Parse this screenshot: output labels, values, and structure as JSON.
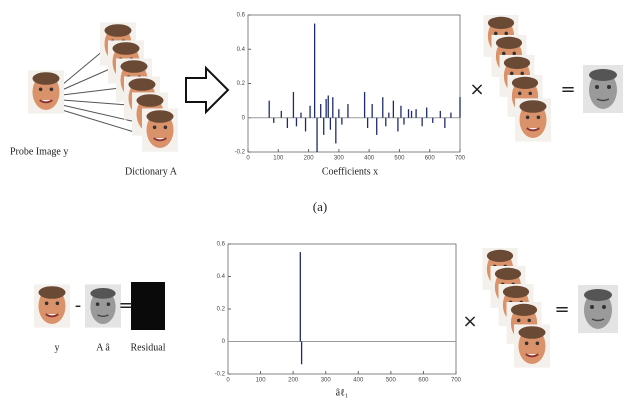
{
  "labels": {
    "probe": "Probe Image y",
    "dictionary": "Dictionary A",
    "panel": "(a)",
    "y": "y",
    "a_hat": "A â",
    "residual": "Residual"
  },
  "operators": {
    "times_top": "×",
    "equals_top": "=",
    "minus_bottom": "-",
    "equals_bottom_left": "=",
    "times_bottom": "×",
    "equals_bottom": "="
  },
  "chart_data": [
    {
      "type": "stem",
      "xlabel": "Coefficients x",
      "color": "#1f2a6e",
      "x": [
        70,
        85,
        110,
        130,
        150,
        160,
        175,
        190,
        205,
        220,
        228,
        240,
        250,
        258,
        265,
        272,
        280,
        290,
        300,
        310,
        330,
        385,
        395,
        410,
        425,
        445,
        455,
        465,
        480,
        495,
        505,
        515,
        530,
        540,
        555,
        575,
        590,
        610,
        635,
        650,
        670,
        700
      ],
      "values": [
        0.1,
        -0.03,
        0.04,
        -0.06,
        0.15,
        -0.05,
        0.03,
        -0.08,
        0.07,
        0.55,
        -0.2,
        0.08,
        -0.1,
        0.11,
        0.13,
        -0.07,
        0.12,
        -0.15,
        0.05,
        -0.04,
        0.08,
        0.15,
        -0.06,
        0.08,
        -0.1,
        0.12,
        -0.05,
        0.03,
        0.1,
        -0.08,
        0.07,
        -0.04,
        0.05,
        0.04,
        0.05,
        -0.05,
        0.06,
        -0.03,
        0.04,
        -0.06,
        0.03,
        0.12
      ],
      "xlim": [
        0,
        700
      ],
      "xticks": [
        0,
        100,
        200,
        300,
        400,
        500,
        600,
        700
      ],
      "ylim": [
        -0.2,
        0.6
      ],
      "yticks": [
        -0.2,
        0,
        0.2,
        0.4,
        0.6
      ]
    },
    {
      "type": "stem",
      "xlabel": "âℓ₁",
      "color": "#1f2a6e",
      "x": [
        222,
        226
      ],
      "values": [
        0.55,
        -0.14
      ],
      "xlim": [
        0,
        700
      ],
      "xticks": [
        0,
        100,
        200,
        300,
        400,
        500,
        600,
        700
      ],
      "ylim": [
        -0.2,
        0.6
      ],
      "yticks": [
        -0.2,
        0,
        0.2,
        0.4,
        0.6
      ]
    }
  ]
}
